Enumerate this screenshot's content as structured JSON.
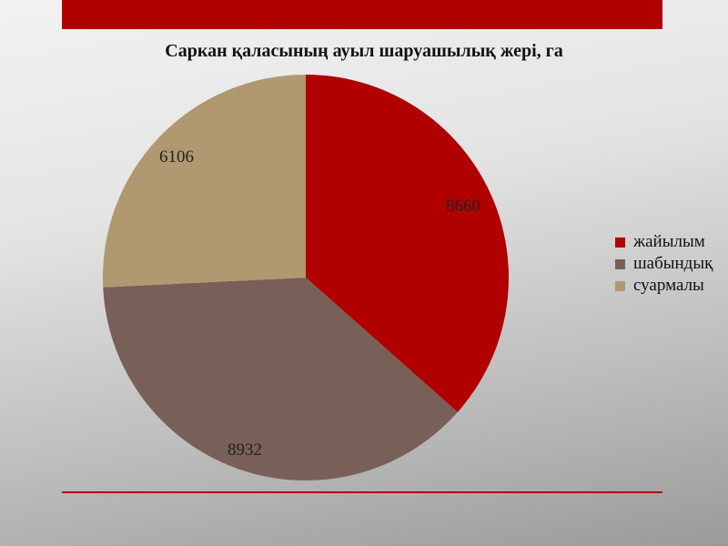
{
  "chart_data": {
    "type": "pie",
    "title": "Саркан қаласының ауыл шаруашылық жері, га",
    "categories": [
      "жайылым",
      "шабындық",
      "суармалы"
    ],
    "values": [
      8660,
      8932,
      6106
    ],
    "colors": [
      "#b00000",
      "#786058",
      "#b09870"
    ],
    "start_angle": "top, clockwise",
    "legend_position": "right"
  }
}
